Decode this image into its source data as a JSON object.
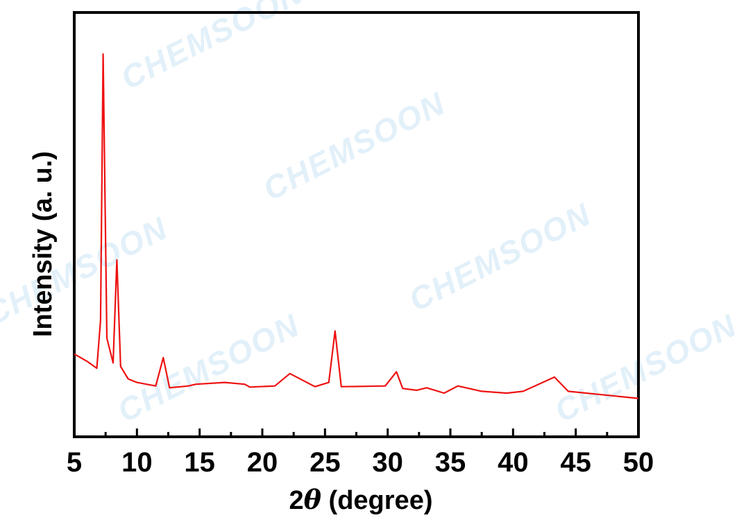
{
  "watermark": "CHEMSOON",
  "chart_data": {
    "type": "line",
    "title": "",
    "xlabel_prefix": "2",
    "xlabel_symbol": "θ",
    "xlabel_suffix": " (degree)",
    "ylabel": "Intensity (a. u.)",
    "xlim": [
      5,
      50
    ],
    "ylim": [
      0,
      100
    ],
    "xticks": [
      5,
      10,
      15,
      20,
      25,
      30,
      35,
      40,
      45,
      50
    ],
    "xtick_labels": [
      "5",
      "10",
      "15",
      "20",
      "25",
      "30",
      "35",
      "40",
      "45",
      "50"
    ],
    "y_tick_labels_shown": false,
    "grid": false,
    "line_color": "#ee1111",
    "series": [
      {
        "x": [
          5.0,
          6.0,
          6.8,
          7.1,
          7.3,
          7.6,
          8.1,
          8.4,
          8.7,
          9.3,
          10.0,
          11.5,
          12.1,
          12.6,
          14.1,
          14.7,
          17.0,
          18.6,
          19.0,
          21.0,
          22.2,
          24.2,
          25.3,
          25.8,
          26.3,
          28.2,
          29.8,
          30.7,
          31.2,
          32.3,
          33.1,
          34.5,
          35.6,
          37.5,
          39.5,
          40.8,
          43.3,
          44.4,
          50.0
        ],
        "y": [
          15.5,
          13.5,
          11.5,
          25,
          100,
          20,
          13,
          42,
          12,
          8.5,
          7.5,
          6.5,
          14.5,
          6,
          6.5,
          7,
          7.5,
          7,
          6.2,
          6.5,
          10,
          6.3,
          7.5,
          22,
          6.3,
          6.4,
          6.5,
          10.5,
          5.8,
          5.3,
          6,
          4.5,
          6.5,
          5,
          4.5,
          5,
          9,
          5,
          3
        ]
      }
    ]
  }
}
